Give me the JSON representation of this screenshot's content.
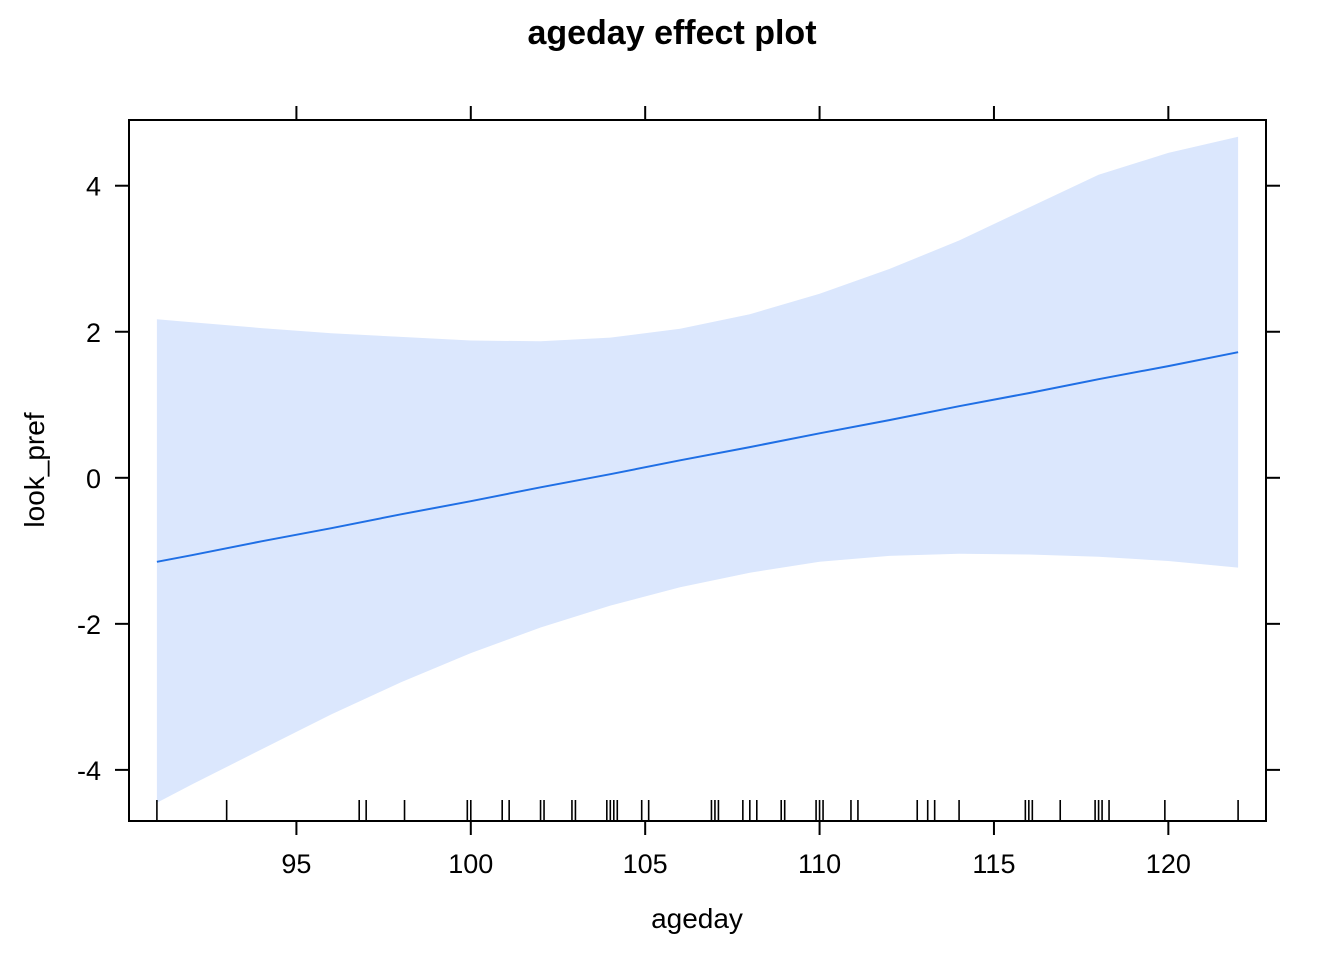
{
  "chart_data": {
    "type": "line",
    "title": "ageday effect plot",
    "xlabel": "ageday",
    "ylabel": "look_pref",
    "xlim": [
      90.2,
      122.8
    ],
    "ylim": [
      -4.7,
      4.9
    ],
    "x_ticks": [
      95,
      100,
      105,
      110,
      115,
      120
    ],
    "x_tick_labels": [
      "95",
      "100",
      "105",
      "110",
      "115",
      "120"
    ],
    "y_ticks": [
      -4,
      -2,
      0,
      2,
      4
    ],
    "y_tick_labels": [
      "-4",
      "-2",
      "0",
      "2",
      "4"
    ],
    "grid": false,
    "colors": {
      "line": "#1f6fe5",
      "band": "#dbe7fd",
      "axis": "#000000"
    },
    "series": [
      {
        "kind": "fit",
        "x": [
          91,
          92,
          94,
          96,
          98,
          100,
          102,
          104,
          106,
          108,
          110,
          112,
          114,
          116,
          118,
          120,
          122
        ],
        "y": [
          -1.15,
          -1.06,
          -0.87,
          -0.69,
          -0.5,
          -0.32,
          -0.13,
          0.05,
          0.24,
          0.42,
          0.61,
          0.79,
          0.98,
          1.16,
          1.35,
          1.53,
          1.72
        ],
        "lower": [
          -4.45,
          -4.2,
          -3.72,
          -3.24,
          -2.8,
          -2.4,
          -2.05,
          -1.75,
          -1.5,
          -1.3,
          -1.15,
          -1.07,
          -1.04,
          -1.05,
          -1.08,
          -1.14,
          -1.23
        ],
        "upper": [
          2.17,
          2.13,
          2.05,
          1.98,
          1.93,
          1.88,
          1.87,
          1.92,
          2.04,
          2.24,
          2.52,
          2.86,
          3.25,
          3.7,
          4.15,
          4.45,
          4.67
        ]
      }
    ],
    "rug": [
      91,
      93,
      96.8,
      97,
      98.1,
      99.9,
      100,
      100.9,
      101.1,
      102,
      102.1,
      102.9,
      103,
      103.9,
      104,
      104.1,
      104.2,
      104.9,
      105.1,
      106.9,
      107,
      107.1,
      107.8,
      108,
      108.2,
      108.9,
      109,
      109.9,
      110,
      110.1,
      110.9,
      111.1,
      112.8,
      113.1,
      113.3,
      114,
      115.9,
      116,
      116.1,
      116.9,
      117.9,
      118,
      118.1,
      118.3,
      119.9,
      122
    ]
  }
}
